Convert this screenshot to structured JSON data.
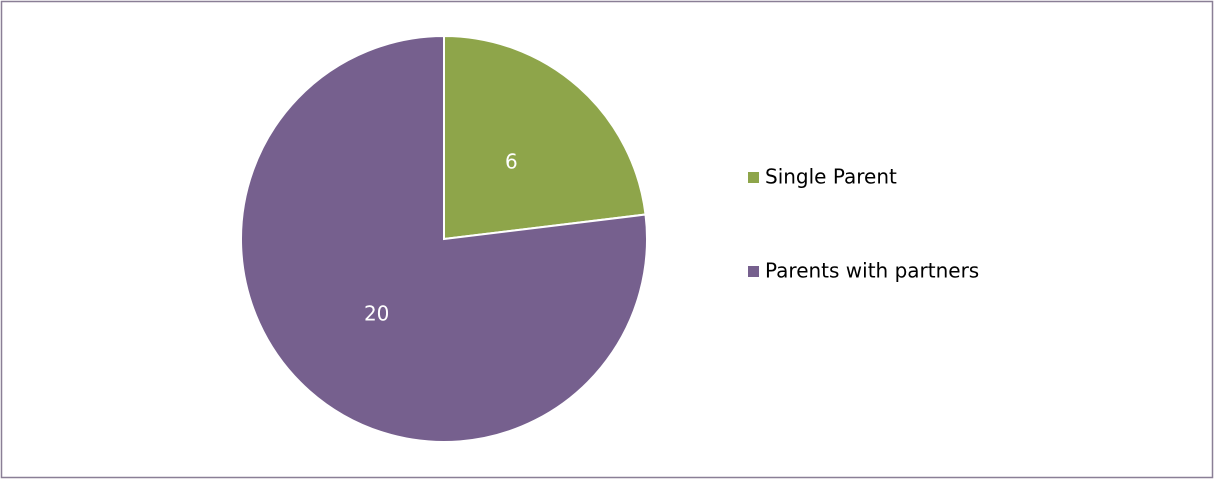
{
  "chart_data": {
    "type": "pie",
    "categories": [
      "Single Parent",
      "Parents with partners"
    ],
    "values": [
      6,
      20
    ],
    "colors": [
      "#8ea54a",
      "#76608e"
    ],
    "legend": "right"
  }
}
